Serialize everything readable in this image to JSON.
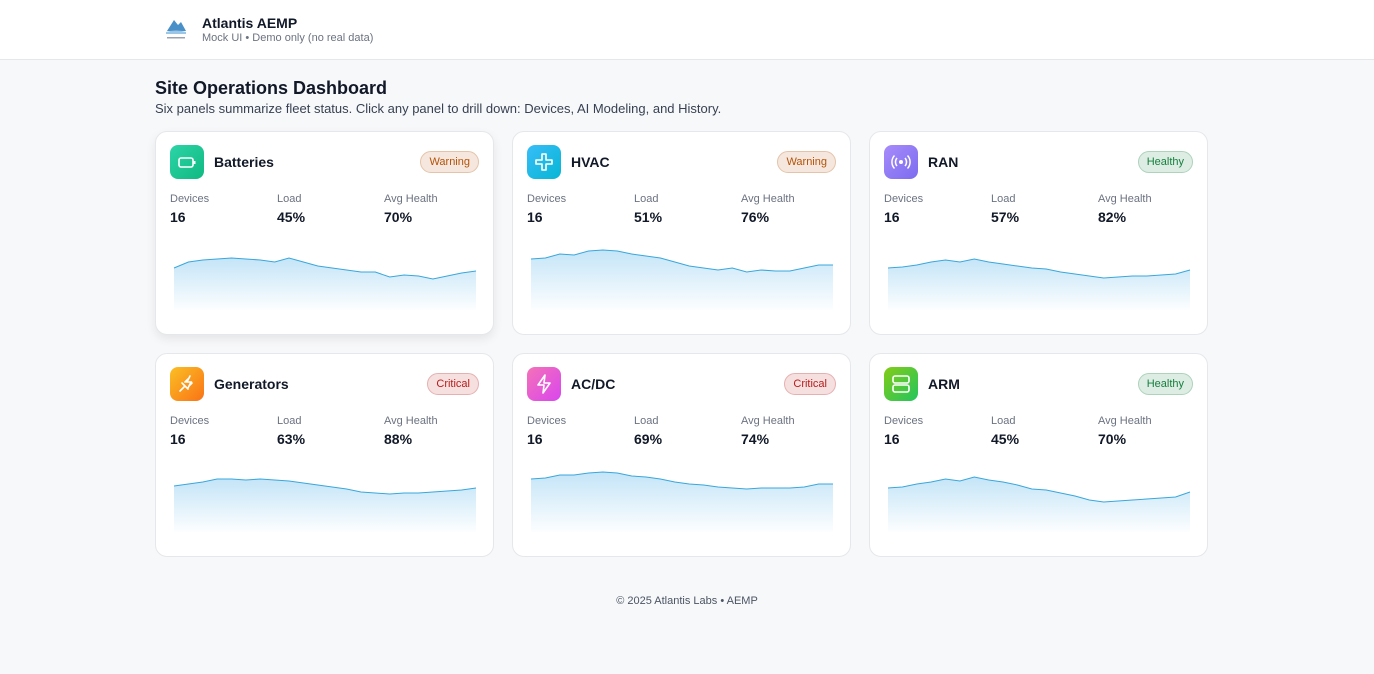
{
  "header": {
    "title": "Atlantis AEMP",
    "subtitle": "Mock UI • Demo only (no real data)"
  },
  "dashboard": {
    "title": "Site Operations Dashboard",
    "subtitle": "Six panels summarize fleet status. Click any panel to drill down: Devices, AI Modeling, and History."
  },
  "panels": [
    {
      "name": "Batteries",
      "status": "Warning",
      "badge_color": "#b45309",
      "icon_colors": [
        "#2dd4a7",
        "#10b981"
      ],
      "stats": [
        {
          "label": "Devices",
          "value": "16"
        },
        {
          "label": "Load",
          "value": "45%"
        },
        {
          "label": "Avg Health",
          "value": "70%"
        }
      ],
      "trend": [
        42,
        48,
        50,
        51,
        52,
        51,
        50,
        48,
        52,
        48,
        44,
        42,
        40,
        38,
        38,
        33,
        35,
        34,
        31,
        34,
        37,
        39
      ]
    },
    {
      "name": "HVAC",
      "status": "Warning",
      "badge_color": "#b45309",
      "icon_colors": [
        "#38bdf8",
        "#06b6d4"
      ],
      "stats": [
        {
          "label": "Devices",
          "value": "16"
        },
        {
          "label": "Load",
          "value": "51%"
        },
        {
          "label": "Avg Health",
          "value": "76%"
        }
      ],
      "trend": [
        51,
        52,
        56,
        55,
        59,
        60,
        59,
        56,
        54,
        52,
        48,
        44,
        42,
        40,
        42,
        38,
        40,
        39,
        39,
        42,
        45,
        45
      ]
    },
    {
      "name": "RAN",
      "status": "Healthy",
      "badge_color": "#15803d",
      "icon_colors": [
        "#a78bfa",
        "#7c6cf0"
      ],
      "stats": [
        {
          "label": "Devices",
          "value": "16"
        },
        {
          "label": "Load",
          "value": "57%"
        },
        {
          "label": "Avg Health",
          "value": "82%"
        }
      ],
      "trend": [
        42,
        43,
        45,
        48,
        50,
        48,
        51,
        48,
        46,
        44,
        42,
        41,
        38,
        36,
        34,
        32,
        33,
        34,
        34,
        35,
        36,
        40
      ]
    },
    {
      "name": "Generators",
      "status": "Critical",
      "badge_color": "#b91c1c",
      "icon_colors": [
        "#fbbf24",
        "#f97316"
      ],
      "stats": [
        {
          "label": "Devices",
          "value": "16"
        },
        {
          "label": "Load",
          "value": "63%"
        },
        {
          "label": "Avg Health",
          "value": "88%"
        }
      ],
      "trend": [
        46,
        48,
        50,
        53,
        53,
        52,
        53,
        52,
        51,
        49,
        47,
        45,
        43,
        40,
        39,
        38,
        39,
        39,
        40,
        41,
        42,
        44
      ]
    },
    {
      "name": "AC/DC",
      "status": "Critical",
      "badge_color": "#b91c1c",
      "icon_colors": [
        "#f472b6",
        "#d946ef"
      ],
      "stats": [
        {
          "label": "Devices",
          "value": "16"
        },
        {
          "label": "Load",
          "value": "69%"
        },
        {
          "label": "Avg Health",
          "value": "74%"
        }
      ],
      "trend": [
        53,
        54,
        57,
        57,
        59,
        60,
        59,
        56,
        55,
        53,
        50,
        48,
        47,
        45,
        44,
        43,
        44,
        44,
        44,
        45,
        48,
        48
      ]
    },
    {
      "name": "ARM",
      "status": "Healthy",
      "badge_color": "#15803d",
      "icon_colors": [
        "#84cc16",
        "#22c55e"
      ],
      "stats": [
        {
          "label": "Devices",
          "value": "16"
        },
        {
          "label": "Load",
          "value": "45%"
        },
        {
          "label": "Avg Health",
          "value": "70%"
        }
      ],
      "trend": [
        44,
        45,
        48,
        50,
        53,
        51,
        55,
        52,
        50,
        47,
        43,
        42,
        39,
        36,
        32,
        30,
        31,
        32,
        33,
        34,
        35,
        40
      ]
    }
  ],
  "footer": {
    "text": "© 2025 Atlantis Labs • AEMP"
  }
}
